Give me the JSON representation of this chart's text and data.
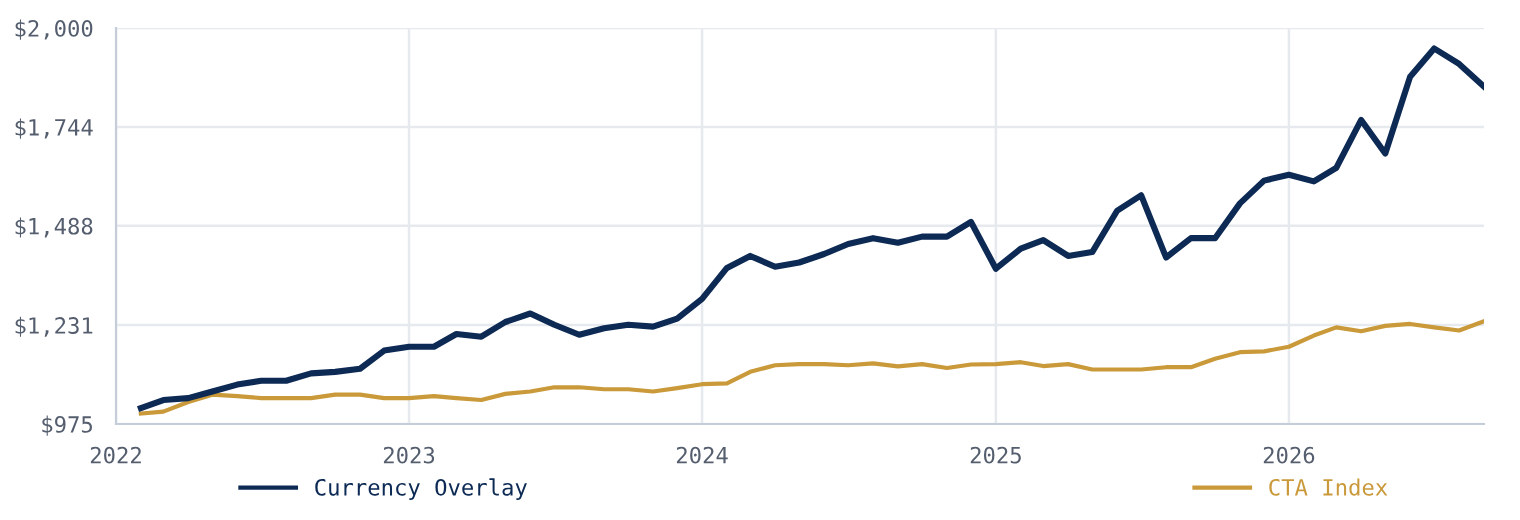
{
  "chart_data": {
    "type": "line",
    "x": [
      "2022-02",
      "2022-03",
      "2022-04",
      "2022-05",
      "2022-06",
      "2022-07",
      "2022-08",
      "2022-09",
      "2022-10",
      "2022-11",
      "2022-12",
      "2023-01",
      "2023-02",
      "2023-03",
      "2023-04",
      "2023-05",
      "2023-06",
      "2023-07",
      "2023-08",
      "2023-09",
      "2023-10",
      "2023-11",
      "2023-12",
      "2024-01",
      "2024-02",
      "2024-03",
      "2024-04",
      "2024-05",
      "2024-06",
      "2024-07",
      "2024-08",
      "2024-09",
      "2024-10",
      "2024-11",
      "2024-12",
      "2025-01",
      "2025-02",
      "2025-03",
      "2025-04",
      "2025-05",
      "2025-06",
      "2025-07",
      "2025-08",
      "2025-09",
      "2025-10",
      "2025-11",
      "2025-12",
      "2026-01",
      "2026-02",
      "2026-03",
      "2026-04",
      "2026-05",
      "2026-06",
      "2026-07",
      "2026-08",
      "2026-09"
    ],
    "series": [
      {
        "name": "Currency Overlay",
        "color": "#0d2a55",
        "values": [
          1016,
          1037,
          1042,
          1059,
          1077,
          1087,
          1087,
          1106,
          1110,
          1118,
          1165,
          1175,
          1175,
          1208,
          1201,
          1239,
          1261,
          1232,
          1206,
          1223,
          1232,
          1227,
          1248,
          1299,
          1379,
          1410,
          1382,
          1393,
          1415,
          1441,
          1456,
          1444,
          1460,
          1460,
          1498,
          1377,
          1429,
          1451,
          1410,
          1420,
          1527,
          1567,
          1406,
          1456,
          1456,
          1546,
          1605,
          1620,
          1603,
          1638,
          1762,
          1675,
          1874,
          1947,
          1907,
          1848
        ]
      },
      {
        "name": "CTA Index",
        "color": "#c9993a",
        "values": [
          1002,
          1007,
          1032,
          1051,
          1047,
          1042,
          1042,
          1042,
          1051,
          1051,
          1042,
          1042,
          1047,
          1042,
          1037,
          1053,
          1059,
          1070,
          1070,
          1065,
          1065,
          1059,
          1068,
          1078,
          1080,
          1110,
          1127,
          1130,
          1130,
          1127,
          1132,
          1124,
          1130,
          1120,
          1129,
          1130,
          1135,
          1125,
          1130,
          1116,
          1116,
          1116,
          1122,
          1122,
          1144,
          1161,
          1163,
          1175,
          1204,
          1225,
          1215,
          1229,
          1234,
          1225,
          1217,
          1241
        ]
      }
    ],
    "xlim": [
      "2022-01",
      "2026-09"
    ],
    "xticks": [
      {
        "value": "2022-01",
        "label": "2022"
      },
      {
        "value": "2023-01",
        "label": "2023"
      },
      {
        "value": "2024-01",
        "label": "2024"
      },
      {
        "value": "2025-01",
        "label": "2025"
      },
      {
        "value": "2026-01",
        "label": "2026"
      }
    ],
    "ylim": [
      975,
      2000
    ],
    "yticks": [
      {
        "value": 975,
        "label": "$975"
      },
      {
        "value": 1231,
        "label": "$1,231"
      },
      {
        "value": 1488,
        "label": "$1,488"
      },
      {
        "value": 1744,
        "label": "$1,744"
      },
      {
        "value": 2000,
        "label": "$2,000"
      }
    ],
    "grid": true,
    "legend": "bottom",
    "marker": "none",
    "line_style": "solid"
  }
}
